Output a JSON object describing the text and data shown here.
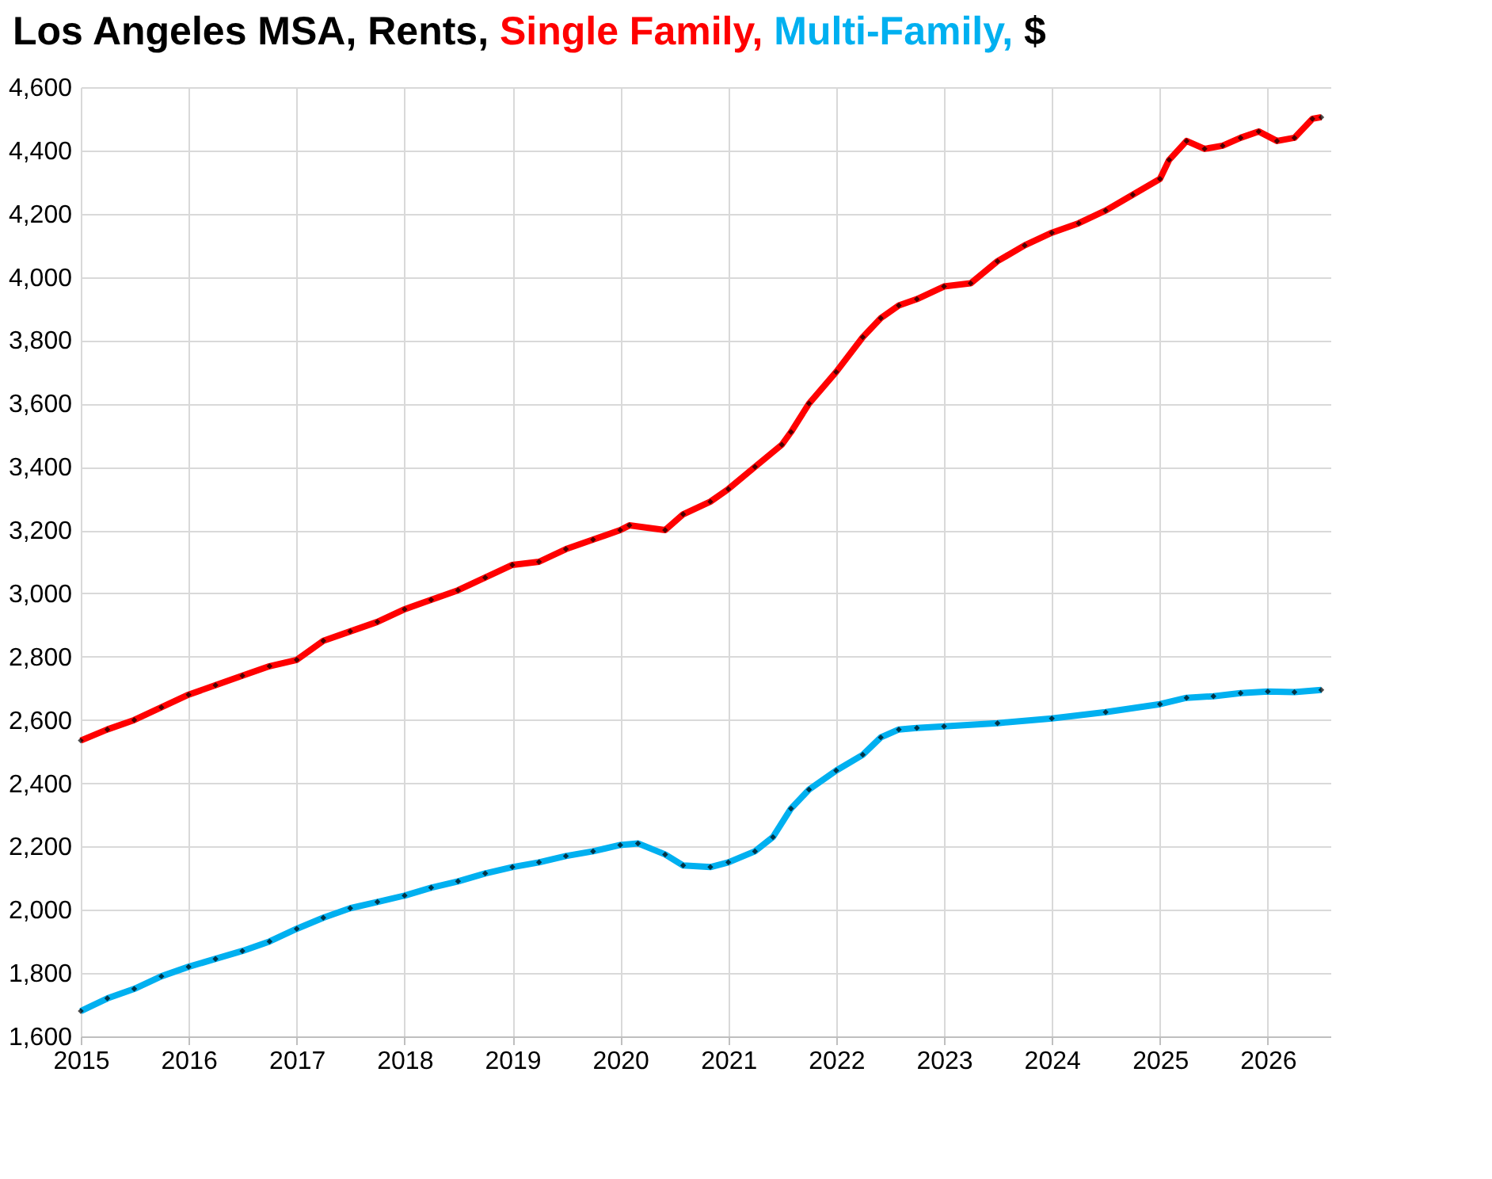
{
  "chart_data": {
    "type": "line",
    "title": "Los Angeles MSA, Rents,",
    "ylabel": "$",
    "xlim": [
      "2015-01-01",
      "2026-08-01"
    ],
    "xticks": [
      "2015",
      "2016",
      "2017",
      "2018",
      "2019",
      "2020",
      "2021",
      "2022",
      "2023",
      "2024",
      "2025",
      "2026"
    ],
    "ylim": [
      1600,
      4600
    ],
    "yticks": [
      {
        "value": 1600,
        "label": "1,600"
      },
      {
        "value": 1800,
        "label": "1,800"
      },
      {
        "value": 2000,
        "label": "2,000"
      },
      {
        "value": 2200,
        "label": "2,200"
      },
      {
        "value": 2400,
        "label": "2,400"
      },
      {
        "value": 2600,
        "label": "2,600"
      },
      {
        "value": 2800,
        "label": "2,800"
      },
      {
        "value": 3000,
        "label": "3,000"
      },
      {
        "value": 3200,
        "label": "3,200"
      },
      {
        "value": 3400,
        "label": "3,400"
      },
      {
        "value": 3600,
        "label": "3,600"
      },
      {
        "value": 3800,
        "label": "3,800"
      },
      {
        "value": 4000,
        "label": "4,000"
      },
      {
        "value": 4200,
        "label": "4,200"
      },
      {
        "value": 4400,
        "label": "4,400"
      },
      {
        "value": 4600,
        "label": "4,600"
      }
    ],
    "grid": true,
    "marker": "diamond",
    "series": [
      {
        "name": "Single Family,",
        "color": "#ff0000",
        "x": [
          "2015-01",
          "2015-04",
          "2015-07",
          "2015-10",
          "2016-01",
          "2016-04",
          "2016-07",
          "2016-10",
          "2017-01",
          "2017-04",
          "2017-07",
          "2017-10",
          "2018-01",
          "2018-04",
          "2018-07",
          "2018-10",
          "2019-01",
          "2019-04",
          "2019-07",
          "2019-10",
          "2020-01",
          "2020-02",
          "2020-06",
          "2020-08",
          "2020-11",
          "2021-01",
          "2021-04",
          "2021-07",
          "2021-08",
          "2021-10",
          "2022-01",
          "2022-04",
          "2022-06",
          "2022-08",
          "2022-10",
          "2023-01",
          "2023-04",
          "2023-07",
          "2023-10",
          "2024-01",
          "2024-04",
          "2024-07",
          "2024-10",
          "2025-01",
          "2025-02",
          "2025-04",
          "2025-06",
          "2025-08",
          "2025-10",
          "2025-12",
          "2026-02",
          "2026-04",
          "2026-06",
          "2026-07"
        ],
        "values": [
          2535,
          2570,
          2600,
          2640,
          2680,
          2710,
          2740,
          2770,
          2790,
          2850,
          2880,
          2910,
          2950,
          2980,
          3010,
          3050,
          3090,
          3100,
          3140,
          3170,
          3200,
          3215,
          3200,
          3250,
          3290,
          3330,
          3400,
          3470,
          3510,
          3600,
          3700,
          3810,
          3870,
          3910,
          3930,
          3970,
          3980,
          4050,
          4100,
          4140,
          4170,
          4210,
          4260,
          4310,
          4370,
          4430,
          4405,
          4415,
          4440,
          4460,
          4430,
          4440,
          4500,
          4505
        ]
      },
      {
        "name": "Multi-Family,",
        "color": "#00b0f0",
        "x": [
          "2015-01",
          "2015-04",
          "2015-07",
          "2015-10",
          "2016-01",
          "2016-04",
          "2016-07",
          "2016-10",
          "2017-01",
          "2017-04",
          "2017-07",
          "2017-10",
          "2018-01",
          "2018-04",
          "2018-07",
          "2018-10",
          "2019-01",
          "2019-04",
          "2019-07",
          "2019-10",
          "2020-01",
          "2020-03",
          "2020-06",
          "2020-08",
          "2020-11",
          "2021-01",
          "2021-04",
          "2021-06",
          "2021-08",
          "2021-10",
          "2022-01",
          "2022-04",
          "2022-06",
          "2022-08",
          "2022-10",
          "2023-01",
          "2023-07",
          "2024-01",
          "2024-07",
          "2025-01",
          "2025-04",
          "2025-07",
          "2025-10",
          "2026-01",
          "2026-04",
          "2026-07"
        ],
        "values": [
          1680,
          1720,
          1750,
          1790,
          1820,
          1845,
          1870,
          1900,
          1940,
          1975,
          2005,
          2025,
          2045,
          2070,
          2090,
          2115,
          2135,
          2150,
          2170,
          2185,
          2205,
          2210,
          2175,
          2140,
          2135,
          2150,
          2185,
          2230,
          2320,
          2380,
          2440,
          2490,
          2545,
          2570,
          2575,
          2580,
          2590,
          2605,
          2625,
          2650,
          2670,
          2675,
          2685,
          2690,
          2688,
          2695
        ]
      }
    ]
  }
}
